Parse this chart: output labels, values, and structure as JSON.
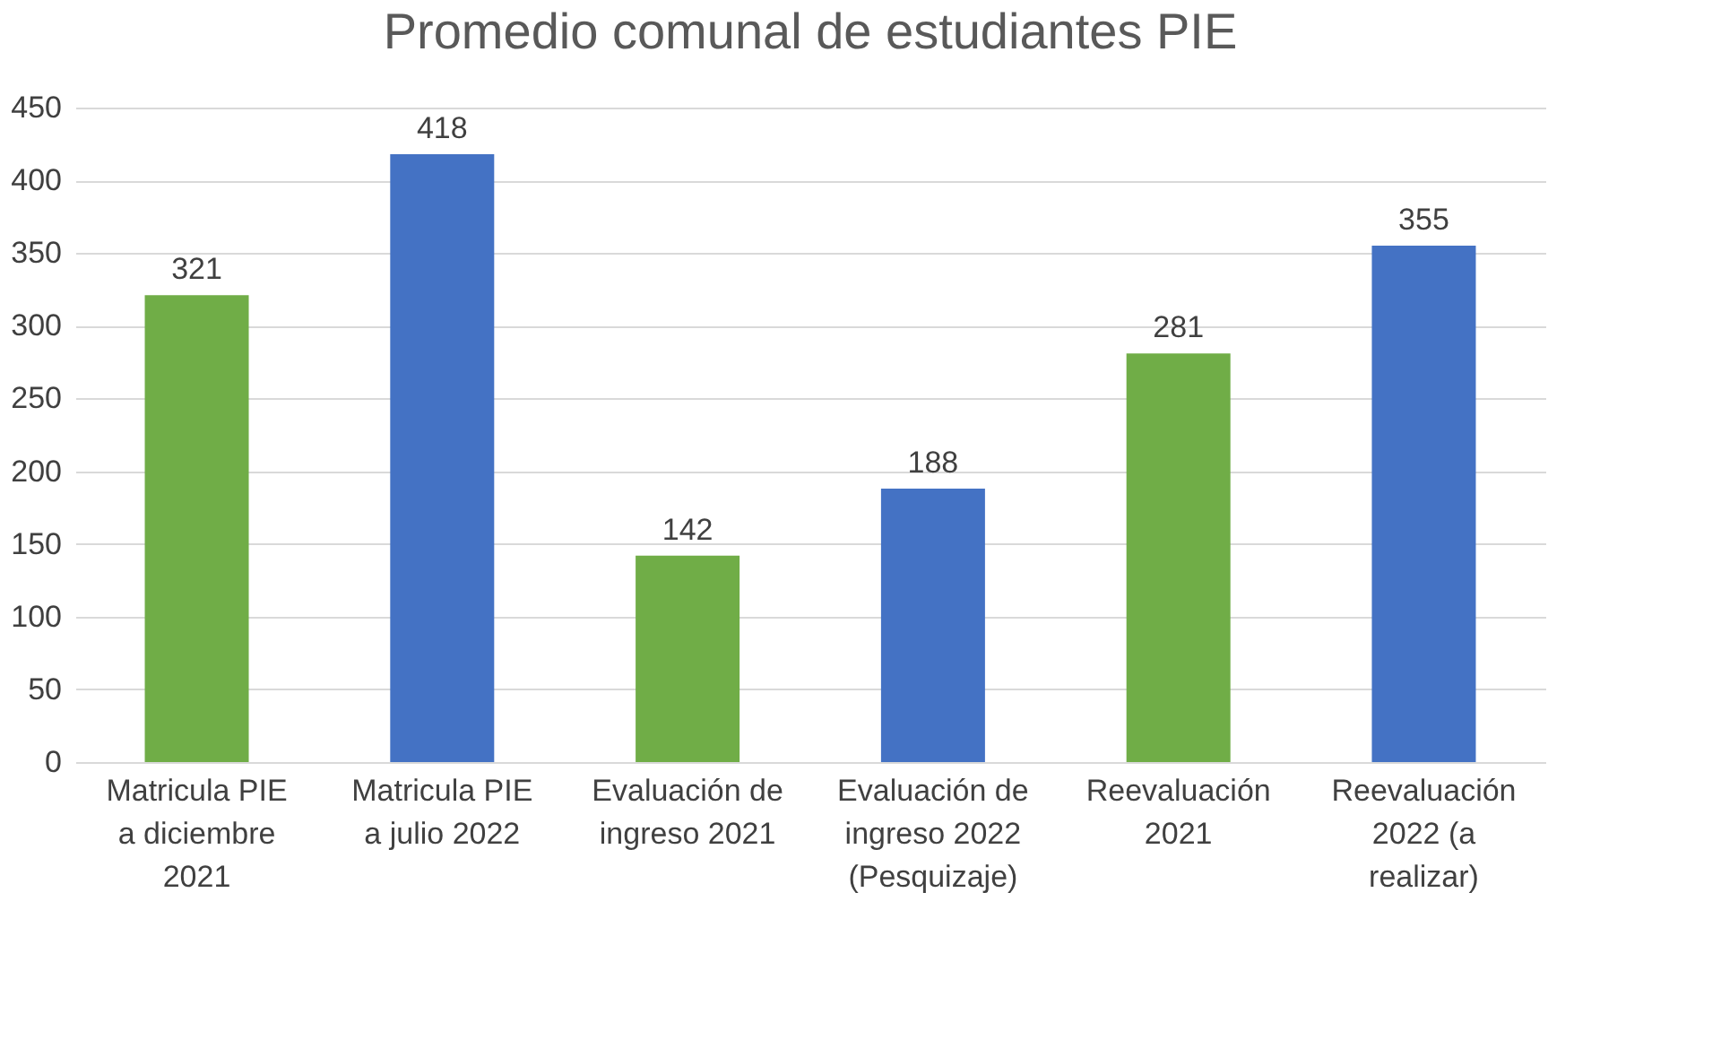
{
  "chart_data": {
    "type": "bar",
    "title": "Promedio comunal de estudiantes PIE",
    "categories": [
      "Matricula PIE a diciembre 2021",
      "Matricula PIE a julio 2022",
      "Evaluación de ingreso 2021",
      "Evaluación de ingreso 2022 (Pesquizaje)",
      "Reevaluación 2021",
      "Reevaluación 2022 (a realizar)"
    ],
    "values": [
      321,
      418,
      142,
      188,
      281,
      355
    ],
    "colors": [
      "#70ad47",
      "#4472c4",
      "#70ad47",
      "#4472c4",
      "#70ad47",
      "#4472c4"
    ],
    "ylim": [
      0,
      450
    ],
    "yticks": [
      0,
      50,
      100,
      150,
      200,
      250,
      300,
      350,
      400,
      450
    ],
    "grid": "y",
    "data_labels": true
  }
}
